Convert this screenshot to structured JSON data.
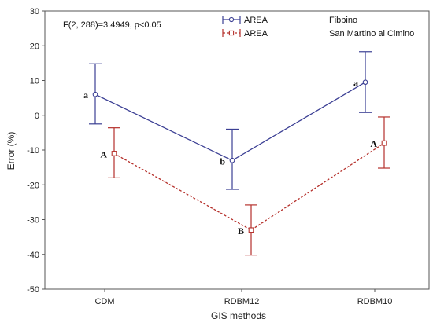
{
  "chart_data": {
    "type": "line",
    "annotation": "F(2, 288)=3.4949, p<0.05",
    "xlabel": "GIS methods",
    "ylabel": "Error (%)",
    "ylim": [
      -50,
      30
    ],
    "yticks": [
      -50,
      -40,
      -30,
      -20,
      -10,
      0,
      10,
      20,
      30
    ],
    "categories": [
      "CDM",
      "RDBM12",
      "RDBM10"
    ],
    "grid": false,
    "legend_placement": "top-center",
    "series": [
      {
        "name": "Fibbino",
        "legend_prefix": "AREA",
        "color": "#3b3f94",
        "line_style": "solid",
        "marker": "circle",
        "values": [
          6,
          -13,
          9.5
        ],
        "error_upper": [
          14.8,
          -4,
          18.3
        ],
        "error_lower": [
          -2.5,
          -21.3,
          0.8
        ],
        "group_labels": [
          "a",
          "b",
          "a"
        ]
      },
      {
        "name": "San Martino al Cimino",
        "legend_prefix": "AREA",
        "color": "#b5302b",
        "line_style": "dashed",
        "marker": "square",
        "values": [
          -11,
          -33,
          -8
        ],
        "error_upper": [
          -3.6,
          -25.8,
          -0.5
        ],
        "error_lower": [
          -18,
          -40.2,
          -15.2
        ],
        "group_labels": [
          "A",
          "B",
          "A"
        ]
      }
    ]
  }
}
